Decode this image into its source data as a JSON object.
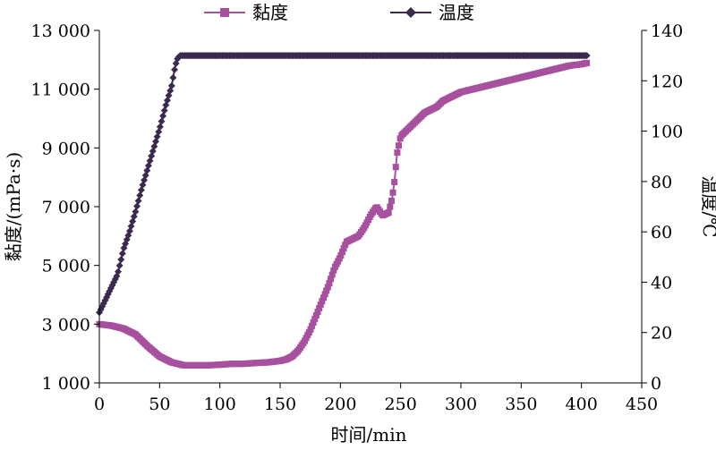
{
  "chart_data": {
    "type": "line",
    "title": "",
    "xlabel": "时间/min",
    "ylabel_left": "黏度/(mPa·s)",
    "ylabel_right": "温度/℃",
    "xlim": [
      0,
      450
    ],
    "ylim_left": [
      1000,
      13000
    ],
    "ylim_right": [
      0,
      140
    ],
    "x_ticks": [
      0,
      50,
      100,
      150,
      200,
      250,
      300,
      350,
      400,
      450
    ],
    "x_tick_labels": [
      "0",
      "50",
      "100",
      "150",
      "200",
      "250",
      "300",
      "350",
      "400",
      "450"
    ],
    "y_left_ticks": [
      1000,
      3000,
      5000,
      7000,
      9000,
      11000,
      13000
    ],
    "y_left_tick_labels": [
      "1 000",
      "3 000",
      "5 000",
      "7 000",
      "9 000",
      "11 000",
      "13 000"
    ],
    "y_right_ticks": [
      0,
      20,
      40,
      60,
      80,
      100,
      120,
      140
    ],
    "y_right_tick_labels": [
      "0",
      "20",
      "40",
      "60",
      "80",
      "100",
      "120",
      "140"
    ],
    "grid": false,
    "legend_position": "top-center",
    "series": [
      {
        "name": "黏度",
        "axis": "left",
        "marker": "square",
        "color": "#A6509E",
        "x": [
          0,
          10,
          20,
          30,
          40,
          50,
          60,
          70,
          80,
          90,
          100,
          110,
          120,
          130,
          140,
          150,
          155,
          160,
          165,
          170,
          175,
          180,
          185,
          190,
          195,
          200,
          205,
          210,
          215,
          220,
          225,
          230,
          235,
          240,
          243,
          245,
          247,
          250,
          255,
          260,
          265,
          270,
          275,
          280,
          285,
          290,
          300,
          310,
          320,
          330,
          340,
          350,
          360,
          370,
          380,
          390,
          400,
          405
        ],
        "y": [
          3000,
          2950,
          2850,
          2650,
          2250,
          1900,
          1700,
          1600,
          1600,
          1600,
          1620,
          1650,
          1650,
          1680,
          1700,
          1750,
          1800,
          1900,
          2100,
          2400,
          2800,
          3300,
          3800,
          4300,
          4900,
          5300,
          5800,
          5900,
          6000,
          6300,
          6700,
          7000,
          6700,
          6800,
          7300,
          7900,
          8800,
          9400,
          9600,
          9800,
          10000,
          10200,
          10300,
          10400,
          10600,
          10700,
          10900,
          11000,
          11100,
          11200,
          11300,
          11400,
          11500,
          11600,
          11700,
          11800,
          11850,
          11900
        ]
      },
      {
        "name": "温度",
        "axis": "right",
        "marker": "diamond",
        "color": "#3A2A4E",
        "x": [
          0,
          5,
          10,
          15,
          20,
          25,
          30,
          35,
          40,
          45,
          50,
          55,
          60,
          63,
          65,
          67,
          70,
          80,
          100,
          150,
          200,
          250,
          300,
          350,
          400,
          405
        ],
        "y": [
          28,
          33,
          38,
          43,
          53,
          60,
          68,
          77,
          85,
          93,
          101,
          110,
          118,
          126,
          129,
          130,
          130,
          130,
          130,
          130,
          130,
          130,
          130,
          130,
          130,
          130
        ]
      }
    ]
  }
}
